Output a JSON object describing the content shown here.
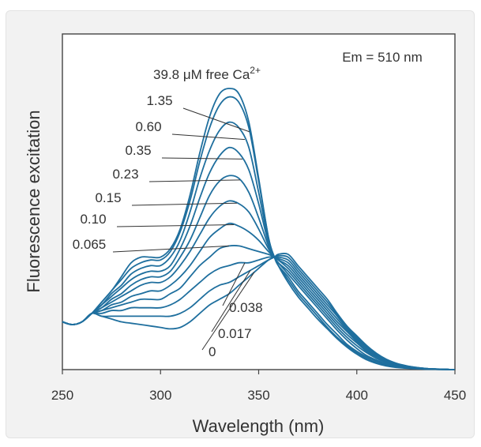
{
  "chart_data": {
    "type": "line",
    "xlabel": "Wavelength (nm)",
    "ylabel": "Fluorescence excitation",
    "xlim": [
      250,
      450
    ],
    "x_ticks": [
      250,
      300,
      350,
      400,
      450
    ],
    "y_ticks_shown": false,
    "grid": false,
    "annotation_top_right": "Em = 510 nm",
    "series_label_header": "39.8 μM free Ca",
    "series_label_header_superscript": "2+",
    "line_color": "#1f6f9e",
    "series": [
      {
        "name": "39.8",
        "x": [
          250,
          255,
          260,
          265,
          270,
          275,
          280,
          285,
          290,
          295,
          300,
          305,
          310,
          315,
          320,
          325,
          330,
          335,
          340,
          345,
          350,
          355,
          358,
          360,
          365,
          370,
          375,
          380,
          385,
          390,
          395,
          400,
          405,
          410,
          415,
          420,
          425,
          430,
          435,
          440,
          445,
          450
        ],
        "y": [
          0.17,
          0.16,
          0.17,
          0.2,
          0.24,
          0.28,
          0.33,
          0.38,
          0.4,
          0.4,
          0.4,
          0.43,
          0.5,
          0.62,
          0.77,
          0.9,
          0.98,
          1.0,
          0.98,
          0.88,
          0.68,
          0.47,
          0.4,
          0.37,
          0.31,
          0.26,
          0.22,
          0.18,
          0.145,
          0.11,
          0.08,
          0.055,
          0.035,
          0.022,
          0.013,
          0.008,
          0.005,
          0.003,
          0.002,
          0.001,
          0.0005,
          0.0
        ]
      },
      {
        "name": "1.35",
        "x": [
          250,
          255,
          260,
          265,
          270,
          275,
          280,
          285,
          290,
          295,
          300,
          305,
          310,
          315,
          320,
          325,
          330,
          335,
          340,
          345,
          350,
          355,
          358,
          360,
          365,
          370,
          375,
          380,
          385,
          390,
          395,
          400,
          405,
          410,
          415,
          420,
          425,
          430,
          435,
          440,
          445,
          450
        ],
        "y": [
          0.17,
          0.16,
          0.17,
          0.2,
          0.24,
          0.28,
          0.32,
          0.36,
          0.38,
          0.39,
          0.39,
          0.42,
          0.49,
          0.6,
          0.74,
          0.86,
          0.94,
          0.97,
          0.95,
          0.86,
          0.67,
          0.47,
          0.4,
          0.37,
          0.32,
          0.27,
          0.23,
          0.19,
          0.15,
          0.115,
          0.085,
          0.06,
          0.04,
          0.025,
          0.015,
          0.009,
          0.006,
          0.004,
          0.002,
          0.001,
          0.0005,
          0.0
        ]
      },
      {
        "name": "0.60",
        "x": [
          250,
          255,
          260,
          265,
          270,
          275,
          280,
          285,
          290,
          295,
          300,
          305,
          310,
          315,
          320,
          325,
          330,
          335,
          340,
          345,
          350,
          355,
          358,
          360,
          365,
          370,
          375,
          380,
          385,
          390,
          395,
          400,
          405,
          410,
          415,
          420,
          425,
          430,
          435,
          440,
          445,
          450
        ],
        "y": [
          0.17,
          0.16,
          0.17,
          0.2,
          0.23,
          0.27,
          0.3,
          0.34,
          0.36,
          0.37,
          0.37,
          0.4,
          0.46,
          0.56,
          0.68,
          0.78,
          0.85,
          0.88,
          0.86,
          0.79,
          0.63,
          0.46,
          0.4,
          0.37,
          0.33,
          0.28,
          0.24,
          0.2,
          0.16,
          0.125,
          0.09,
          0.065,
          0.045,
          0.03,
          0.018,
          0.011,
          0.007,
          0.004,
          0.002,
          0.001,
          0.0005,
          0.0
        ]
      },
      {
        "name": "0.35",
        "x": [
          250,
          255,
          260,
          265,
          270,
          275,
          280,
          285,
          290,
          295,
          300,
          305,
          310,
          315,
          320,
          325,
          330,
          335,
          340,
          345,
          350,
          355,
          358,
          360,
          365,
          370,
          375,
          380,
          385,
          390,
          395,
          400,
          405,
          410,
          415,
          420,
          425,
          430,
          435,
          440,
          445,
          450
        ],
        "y": [
          0.17,
          0.16,
          0.17,
          0.2,
          0.23,
          0.26,
          0.29,
          0.32,
          0.34,
          0.35,
          0.35,
          0.37,
          0.43,
          0.51,
          0.61,
          0.7,
          0.76,
          0.79,
          0.77,
          0.71,
          0.59,
          0.45,
          0.4,
          0.38,
          0.34,
          0.3,
          0.26,
          0.22,
          0.18,
          0.14,
          0.105,
          0.075,
          0.05,
          0.034,
          0.021,
          0.013,
          0.008,
          0.005,
          0.003,
          0.0015,
          0.0007,
          0.0
        ]
      },
      {
        "name": "0.23",
        "x": [
          250,
          255,
          260,
          265,
          270,
          275,
          280,
          285,
          290,
          295,
          300,
          305,
          310,
          315,
          320,
          325,
          330,
          335,
          340,
          345,
          350,
          355,
          358,
          360,
          365,
          370,
          375,
          380,
          385,
          390,
          395,
          400,
          405,
          410,
          415,
          420,
          425,
          430,
          435,
          440,
          445,
          450
        ],
        "y": [
          0.17,
          0.16,
          0.17,
          0.2,
          0.22,
          0.25,
          0.27,
          0.3,
          0.32,
          0.33,
          0.33,
          0.35,
          0.4,
          0.46,
          0.54,
          0.62,
          0.67,
          0.69,
          0.68,
          0.63,
          0.54,
          0.44,
          0.4,
          0.38,
          0.35,
          0.31,
          0.27,
          0.23,
          0.19,
          0.15,
          0.115,
          0.085,
          0.06,
          0.04,
          0.025,
          0.015,
          0.009,
          0.006,
          0.003,
          0.002,
          0.001,
          0.0
        ]
      },
      {
        "name": "0.15",
        "x": [
          250,
          255,
          260,
          265,
          270,
          275,
          280,
          285,
          290,
          295,
          300,
          305,
          310,
          315,
          320,
          325,
          330,
          335,
          340,
          345,
          350,
          355,
          358,
          360,
          365,
          370,
          375,
          380,
          385,
          390,
          395,
          400,
          405,
          410,
          415,
          420,
          425,
          430,
          435,
          440,
          445,
          450
        ],
        "y": [
          0.17,
          0.16,
          0.17,
          0.2,
          0.22,
          0.24,
          0.26,
          0.28,
          0.3,
          0.31,
          0.31,
          0.33,
          0.37,
          0.42,
          0.48,
          0.54,
          0.58,
          0.6,
          0.59,
          0.56,
          0.5,
          0.43,
          0.4,
          0.39,
          0.36,
          0.32,
          0.28,
          0.24,
          0.2,
          0.16,
          0.125,
          0.095,
          0.065,
          0.045,
          0.028,
          0.017,
          0.01,
          0.006,
          0.003,
          0.002,
          0.001,
          0.0
        ]
      },
      {
        "name": "0.10",
        "x": [
          250,
          255,
          260,
          265,
          270,
          275,
          280,
          285,
          290,
          295,
          300,
          305,
          310,
          315,
          320,
          325,
          330,
          335,
          340,
          345,
          350,
          355,
          358,
          360,
          365,
          370,
          375,
          380,
          385,
          390,
          395,
          400,
          405,
          410,
          415,
          420,
          425,
          430,
          435,
          440,
          445,
          450
        ],
        "y": [
          0.17,
          0.16,
          0.17,
          0.2,
          0.21,
          0.23,
          0.24,
          0.26,
          0.27,
          0.28,
          0.28,
          0.3,
          0.33,
          0.37,
          0.42,
          0.47,
          0.5,
          0.52,
          0.51,
          0.49,
          0.46,
          0.42,
          0.4,
          0.39,
          0.37,
          0.33,
          0.29,
          0.25,
          0.21,
          0.17,
          0.135,
          0.1,
          0.07,
          0.048,
          0.03,
          0.018,
          0.011,
          0.006,
          0.003,
          0.002,
          0.001,
          0.0
        ]
      },
      {
        "name": "0.065",
        "x": [
          250,
          255,
          260,
          265,
          270,
          275,
          280,
          285,
          290,
          295,
          300,
          305,
          310,
          315,
          320,
          325,
          330,
          335,
          340,
          345,
          350,
          355,
          358,
          360,
          365,
          370,
          375,
          380,
          385,
          390,
          395,
          400,
          405,
          410,
          415,
          420,
          425,
          430,
          435,
          440,
          445,
          450
        ],
        "y": [
          0.17,
          0.16,
          0.17,
          0.2,
          0.21,
          0.22,
          0.23,
          0.24,
          0.25,
          0.25,
          0.25,
          0.27,
          0.29,
          0.33,
          0.37,
          0.4,
          0.43,
          0.44,
          0.44,
          0.43,
          0.42,
          0.41,
          0.4,
          0.395,
          0.38,
          0.34,
          0.3,
          0.26,
          0.22,
          0.18,
          0.14,
          0.105,
          0.075,
          0.05,
          0.032,
          0.02,
          0.012,
          0.007,
          0.004,
          0.002,
          0.001,
          0.0
        ]
      },
      {
        "name": "0.038",
        "x": [
          250,
          255,
          260,
          265,
          270,
          275,
          280,
          285,
          290,
          295,
          300,
          305,
          310,
          315,
          320,
          325,
          330,
          335,
          340,
          345,
          350,
          355,
          358,
          360,
          365,
          370,
          375,
          380,
          385,
          390,
          395,
          400,
          405,
          410,
          415,
          420,
          425,
          430,
          435,
          440,
          445,
          450
        ],
        "y": [
          0.17,
          0.16,
          0.17,
          0.2,
          0.2,
          0.21,
          0.21,
          0.22,
          0.22,
          0.22,
          0.22,
          0.23,
          0.25,
          0.28,
          0.31,
          0.34,
          0.36,
          0.37,
          0.38,
          0.38,
          0.39,
          0.4,
          0.4,
          0.4,
          0.39,
          0.35,
          0.31,
          0.27,
          0.23,
          0.19,
          0.145,
          0.11,
          0.08,
          0.053,
          0.034,
          0.021,
          0.013,
          0.007,
          0.004,
          0.002,
          0.001,
          0.0
        ]
      },
      {
        "name": "0.017",
        "x": [
          250,
          255,
          260,
          265,
          270,
          275,
          280,
          285,
          290,
          295,
          300,
          305,
          310,
          315,
          320,
          325,
          330,
          335,
          340,
          345,
          350,
          355,
          358,
          360,
          365,
          370,
          375,
          380,
          385,
          390,
          395,
          400,
          405,
          410,
          415,
          420,
          425,
          430,
          435,
          440,
          445,
          450
        ],
        "y": [
          0.17,
          0.16,
          0.17,
          0.2,
          0.19,
          0.19,
          0.19,
          0.19,
          0.19,
          0.19,
          0.19,
          0.19,
          0.2,
          0.22,
          0.25,
          0.28,
          0.3,
          0.31,
          0.33,
          0.35,
          0.37,
          0.39,
          0.4,
          0.405,
          0.4,
          0.36,
          0.32,
          0.28,
          0.24,
          0.195,
          0.15,
          0.115,
          0.083,
          0.056,
          0.036,
          0.022,
          0.013,
          0.008,
          0.004,
          0.002,
          0.001,
          0.0
        ]
      },
      {
        "name": "0",
        "x": [
          250,
          255,
          260,
          265,
          270,
          275,
          280,
          285,
          290,
          295,
          300,
          305,
          310,
          315,
          320,
          325,
          330,
          335,
          340,
          345,
          350,
          355,
          358,
          360,
          365,
          370,
          375,
          380,
          385,
          390,
          395,
          400,
          405,
          410,
          415,
          420,
          425,
          430,
          435,
          440,
          445,
          450
        ],
        "y": [
          0.17,
          0.16,
          0.17,
          0.2,
          0.19,
          0.18,
          0.17,
          0.165,
          0.16,
          0.155,
          0.15,
          0.145,
          0.15,
          0.17,
          0.2,
          0.23,
          0.25,
          0.27,
          0.3,
          0.33,
          0.36,
          0.39,
          0.4,
          0.41,
          0.41,
          0.37,
          0.33,
          0.29,
          0.25,
          0.2,
          0.155,
          0.12,
          0.086,
          0.058,
          0.037,
          0.023,
          0.014,
          0.008,
          0.004,
          0.002,
          0.001,
          0.0
        ]
      }
    ],
    "series_labels": {
      "left": [
        "1.35",
        "0.60",
        "0.35",
        "0.23",
        "0.15",
        "0.10",
        "0.065"
      ],
      "right": [
        "0.038",
        "0.017",
        "0"
      ]
    }
  }
}
